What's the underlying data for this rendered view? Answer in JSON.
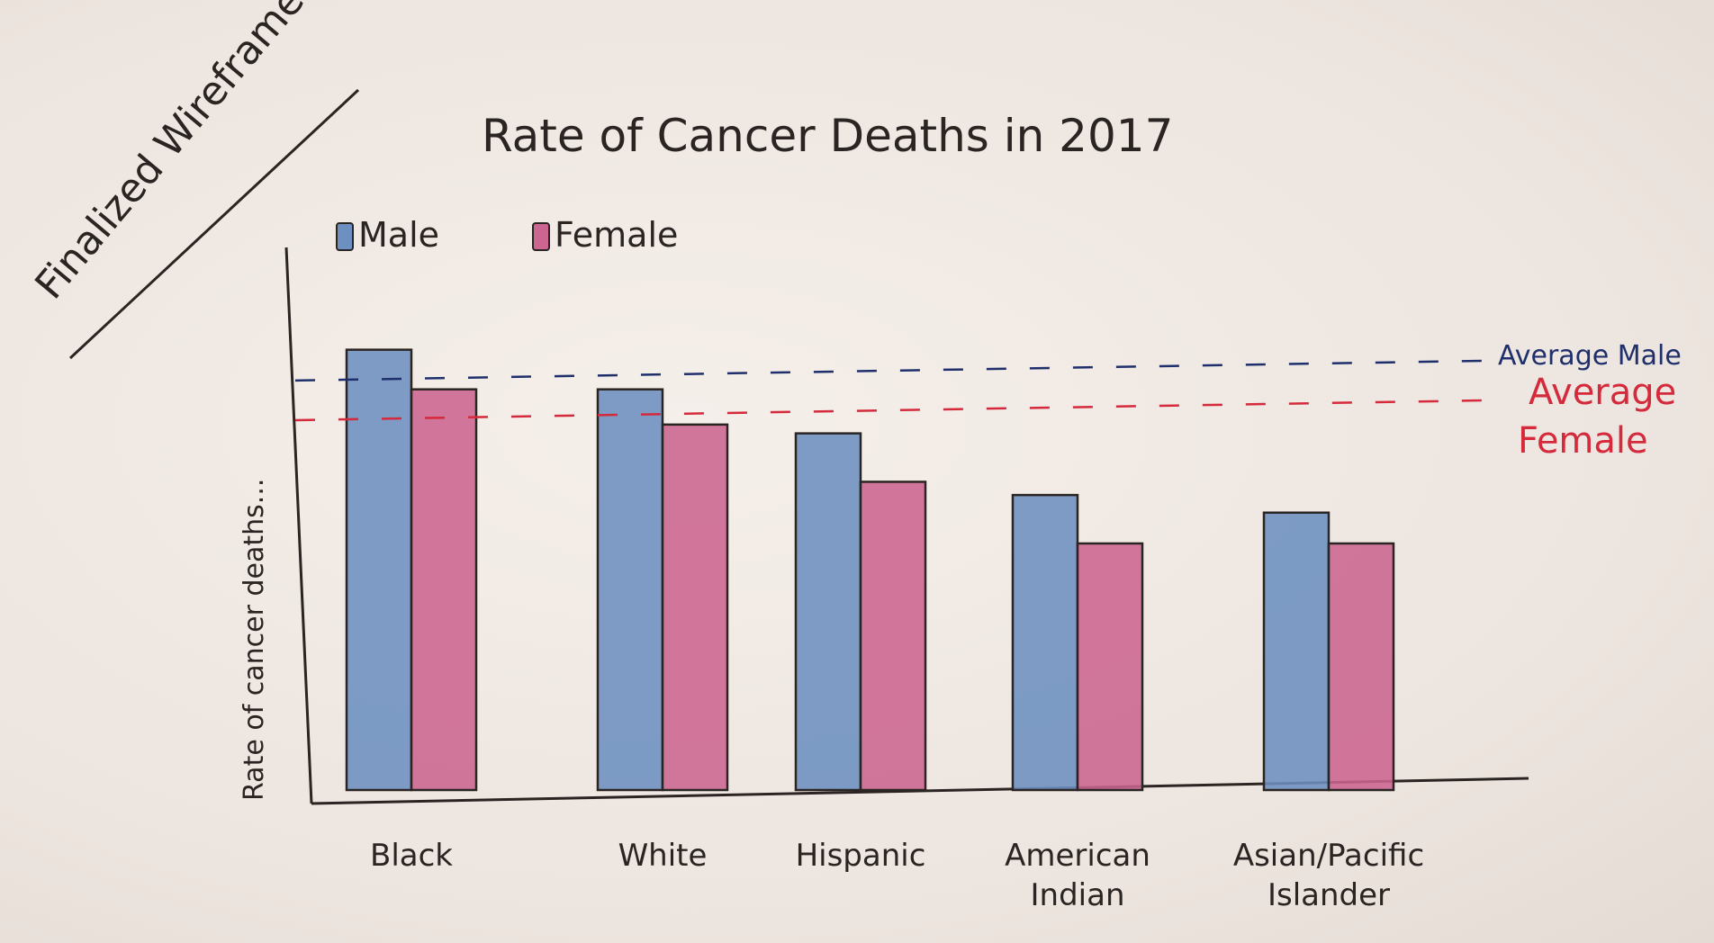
{
  "annotation": "Finalized Wireframe",
  "chart_data": {
    "type": "bar",
    "title": "Rate of Cancer Deaths in 2017",
    "ylabel": "Rate of cancer deaths...",
    "xlabel": "",
    "categories": [
      "Black",
      "White",
      "Hispanic",
      "American Indian",
      "Asian/Pacific Islander"
    ],
    "series": [
      {
        "name": "Male",
        "values": [
          100,
          91,
          81,
          67,
          63
        ]
      },
      {
        "name": "Female",
        "values": [
          91,
          83,
          70,
          56,
          56
        ]
      }
    ],
    "reference_lines": [
      {
        "name": "Average Male",
        "value": 93,
        "color": "#1f2f6b"
      },
      {
        "name": "Average Female",
        "value": 84,
        "color": "#d42a3c"
      }
    ],
    "ylim": [
      0,
      115
    ],
    "grid": false,
    "legend_position": "top-left",
    "colors": {
      "Male": "#6c90bf",
      "Female": "#cc6590"
    }
  }
}
